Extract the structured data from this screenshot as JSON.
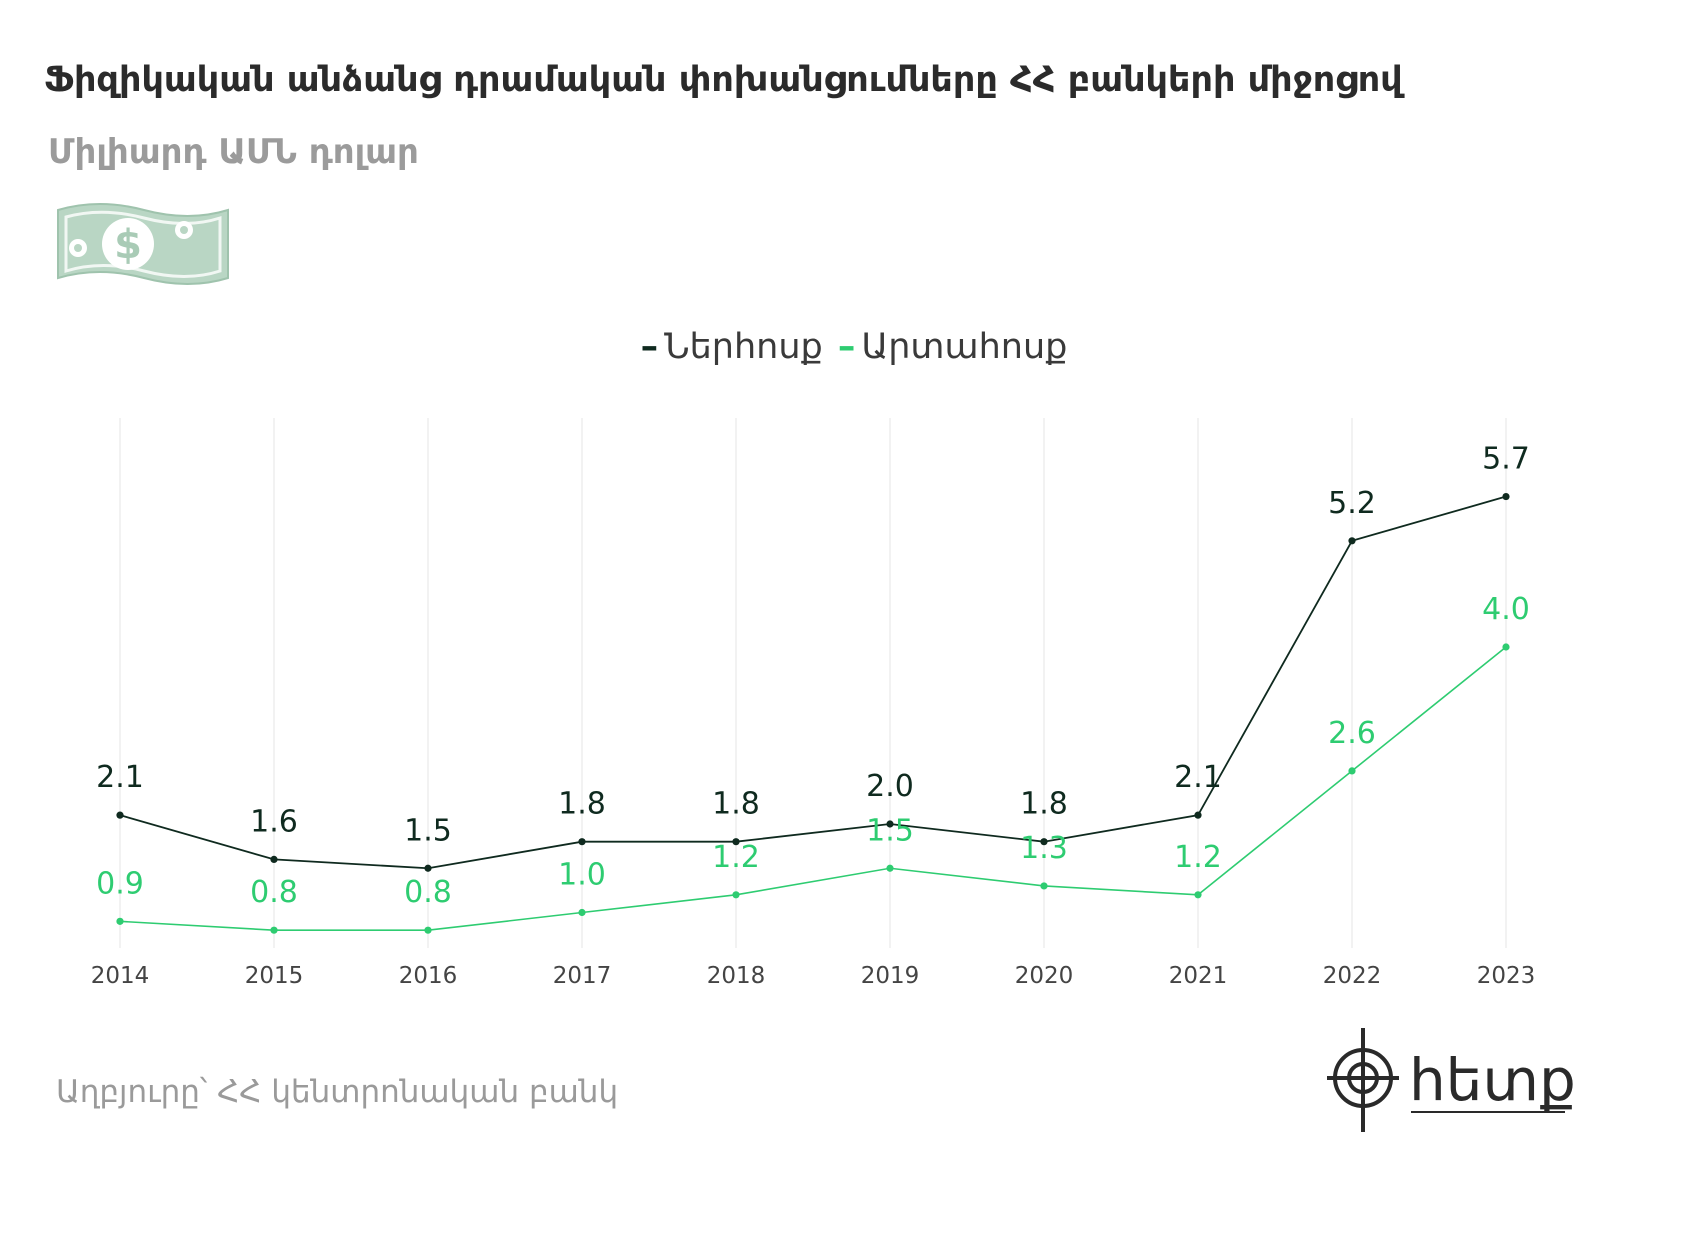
{
  "title": "Ֆիզիկական անձանց դրամական փոխանցումները ՀՀ բանկերի միջոցով",
  "subtitle": "Միլիարդ ԱՄՆ դոլար",
  "source": "Աղբյուրը՝ ՀՀ կենտրոնական բանկ",
  "logo": {
    "text": "hետք",
    "icon": "target-crosshair-icon"
  },
  "money_icon": "dollar-banknote-icon",
  "colors": {
    "incoming": "#0f2a1f",
    "outgoing": "#2ecc71",
    "grid": "#e6e6e6",
    "axis_text": "#444444"
  },
  "chart_data": {
    "type": "line",
    "categories": [
      "2014",
      "2015",
      "2016",
      "2017",
      "2018",
      "2019",
      "2020",
      "2021",
      "2022",
      "2023"
    ],
    "series": [
      {
        "name": "Ներհոսք",
        "color": "#0f2a1f",
        "values": [
          2.1,
          1.6,
          1.5,
          1.8,
          1.8,
          2.0,
          1.8,
          2.1,
          5.2,
          5.7
        ]
      },
      {
        "name": "Արտահոսք",
        "color": "#2ecc71",
        "values": [
          0.9,
          0.8,
          0.8,
          1.0,
          1.2,
          1.5,
          1.3,
          1.2,
          2.6,
          4.0
        ]
      }
    ],
    "legend_position": "top-center",
    "grid": "vertical",
    "ylim": [
      0,
      6
    ],
    "xlabel": "",
    "ylabel": ""
  }
}
